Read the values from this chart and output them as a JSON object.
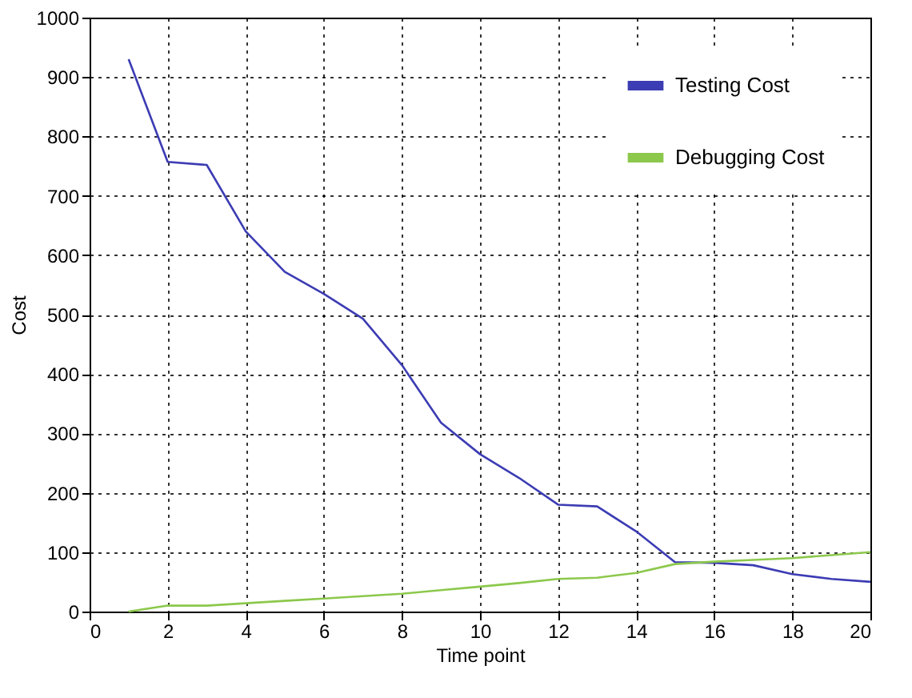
{
  "chart_data": {
    "type": "line",
    "xlabel": "Time point",
    "ylabel": "Cost",
    "x": [
      1,
      2,
      3,
      4,
      5,
      6,
      7,
      8,
      9,
      10,
      11,
      12,
      13,
      14,
      15,
      16,
      17,
      18,
      19,
      20
    ],
    "series": [
      {
        "name": "Testing Cost",
        "color": "#3c3cb4",
        "values": [
          930,
          757,
          752,
          640,
          572,
          535,
          493,
          415,
          318,
          265,
          225,
          180,
          177,
          135,
          83,
          82,
          78,
          63,
          55,
          50
        ]
      },
      {
        "name": "Debugging Cost",
        "color": "#8cc84c",
        "values": [
          0,
          10,
          10,
          14,
          18,
          22,
          26,
          30,
          36,
          42,
          48,
          55,
          57,
          65,
          80,
          84,
          87,
          90,
          95,
          100
        ]
      }
    ],
    "xlim": [
      0,
      20
    ],
    "xticks": [
      0,
      2,
      4,
      6,
      8,
      10,
      12,
      14,
      16,
      18,
      20
    ],
    "ylim": [
      0,
      1000
    ],
    "yticks": [
      0,
      100,
      200,
      300,
      400,
      500,
      600,
      700,
      800,
      900,
      1000
    ],
    "grid": true,
    "legend": "top right",
    "line_style": "solid",
    "marker": "none"
  }
}
